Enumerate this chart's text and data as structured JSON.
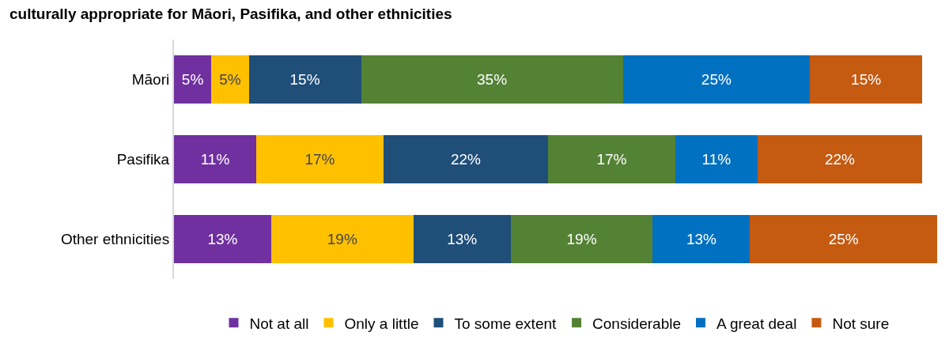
{
  "chart_data": {
    "type": "bar",
    "orientation": "horizontal",
    "stacked": true,
    "legend": "bottom",
    "grid": false,
    "tick_labels": "y",
    "title": "culturally appropriate for Māori, Pasifika, and other ethnicities",
    "categories": [
      "Māori",
      "Pasifika",
      "Other ethnicities"
    ],
    "series": [
      {
        "name": "Not at all",
        "color": "#7030a0",
        "values": [
          5,
          11,
          13
        ],
        "value_labels": [
          "5%",
          "11%",
          "13%"
        ]
      },
      {
        "name": "Only a little",
        "color": "#ffc000",
        "values": [
          5,
          17,
          19
        ],
        "value_labels": [
          "5%",
          "17%",
          "19%"
        ]
      },
      {
        "name": "To some extent",
        "color": "#1f4e79",
        "values": [
          15,
          22,
          13
        ],
        "value_labels": [
          "15%",
          "22%",
          "13%"
        ]
      },
      {
        "name": "Considerable",
        "color": "#548235",
        "values": [
          35,
          17,
          19
        ],
        "value_labels": [
          "35%",
          "17%",
          "19%"
        ]
      },
      {
        "name": "A great deal",
        "color": "#0070c0",
        "values": [
          25,
          11,
          13
        ],
        "value_labels": [
          "25%",
          "11%",
          "13%"
        ]
      },
      {
        "name": "Not sure",
        "color": "#c55a11",
        "values": [
          15,
          22,
          25
        ],
        "value_labels": [
          "15%",
          "22%",
          "25%"
        ]
      }
    ]
  }
}
